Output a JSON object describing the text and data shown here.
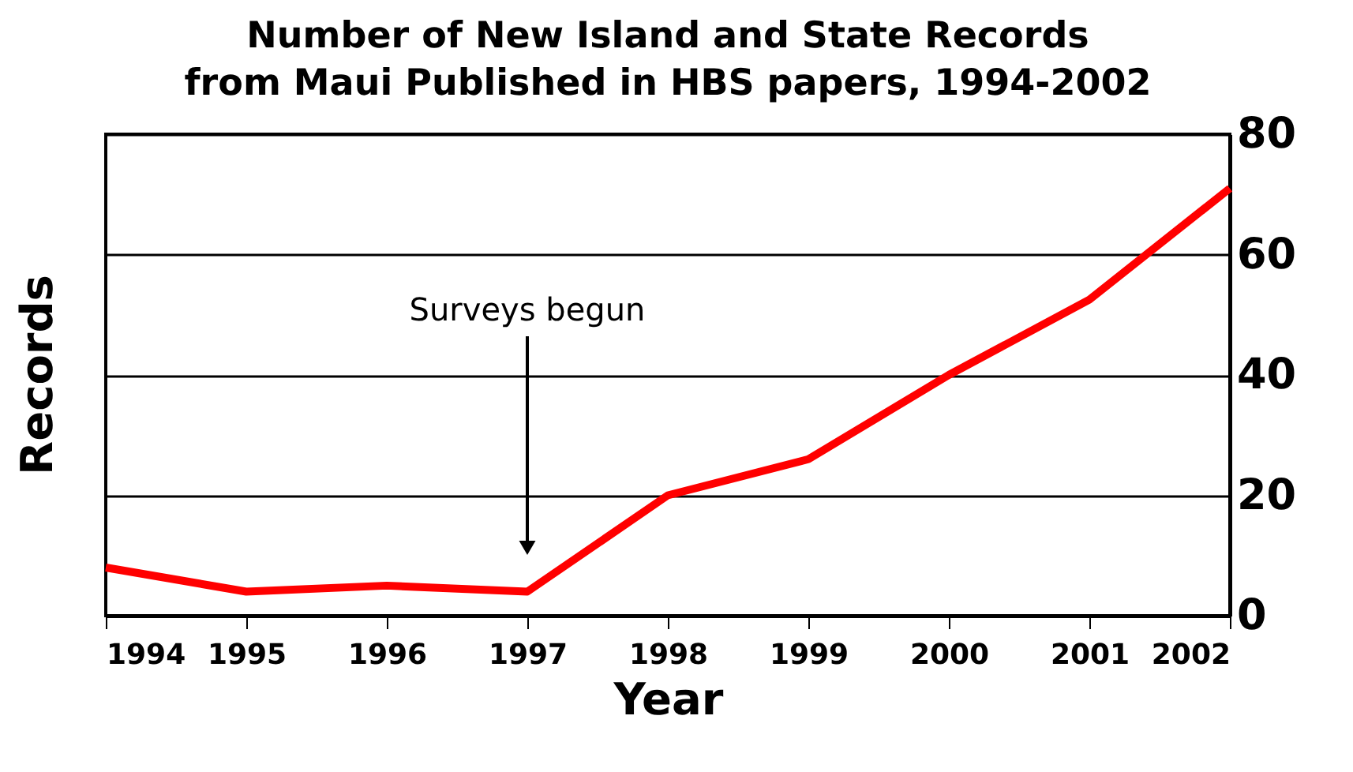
{
  "chart_data": {
    "type": "line",
    "title": [
      "Number of New Island and State Records",
      "from Maui Published in HBS papers, 1994-2002"
    ],
    "xlabel": "Year",
    "ylabel": "Records",
    "x": [
      1994,
      1995,
      1996,
      1997,
      1998,
      1999,
      2000,
      2001,
      2002
    ],
    "series": [
      {
        "color": "#ff0000",
        "values": [
          8,
          4,
          5,
          4,
          20,
          26,
          40,
          52.5,
          71
        ]
      }
    ],
    "xlim": [
      1994,
      2002
    ],
    "xticks": [
      1994,
      1995,
      1996,
      1997,
      1998,
      1999,
      2000,
      2001,
      2002
    ],
    "ylim": [
      0,
      80
    ],
    "yticks": [
      0,
      20,
      40,
      60,
      80
    ],
    "grid": "y",
    "marker": "none",
    "line_style": "solid",
    "annotations": [
      "Surveys begun"
    ]
  }
}
